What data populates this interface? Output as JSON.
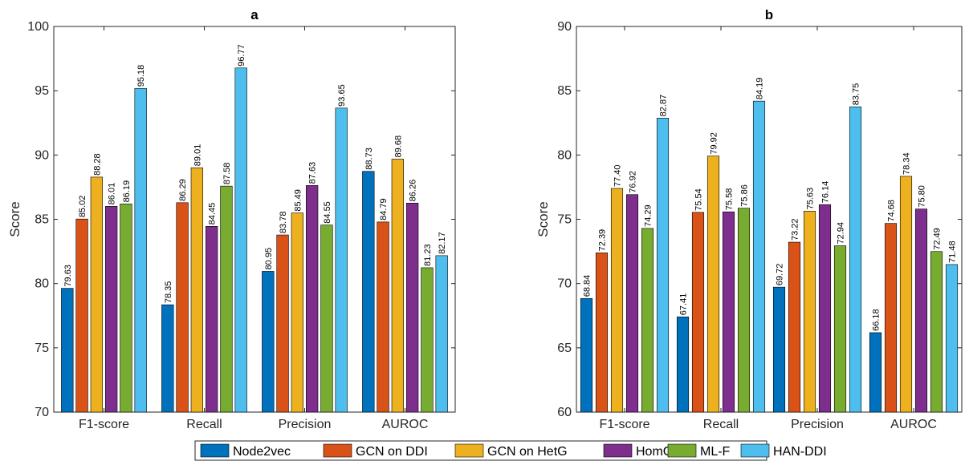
{
  "chart_data": [
    {
      "type": "bar",
      "title": "a",
      "xlabel": "",
      "ylabel": "Score",
      "ylim": [
        70,
        100
      ],
      "yticks": [
        70,
        75,
        80,
        85,
        90,
        95,
        100
      ],
      "categories": [
        "F1-score",
        "Recall",
        "Precision",
        "AUROC"
      ],
      "series": [
        {
          "name": "Node2vec",
          "values": [
            79.63,
            78.35,
            80.95,
            88.73
          ]
        },
        {
          "name": "GCN on DDI",
          "values": [
            85.02,
            86.29,
            83.78,
            84.79
          ]
        },
        {
          "name": "GCN on HetG",
          "values": [
            88.28,
            89.01,
            85.49,
            89.68
          ]
        },
        {
          "name": "HomG",
          "values": [
            86.01,
            84.45,
            87.63,
            86.26
          ]
        },
        {
          "name": "ML-F",
          "values": [
            86.19,
            87.58,
            84.55,
            81.23
          ]
        },
        {
          "name": "HAN-DDI",
          "values": [
            95.18,
            96.77,
            93.65,
            82.17
          ]
        }
      ],
      "labels": [
        [
          "79.63",
          "78.35",
          "80.95",
          "88.73"
        ],
        [
          "85.02",
          "86.29",
          "83.78",
          "84.79"
        ],
        [
          "88.28",
          "89.01",
          "85.49",
          "89.68"
        ],
        [
          "86.01",
          "84.45",
          "87.63",
          "86.26"
        ],
        [
          "86.19",
          "87.58",
          "84.55",
          "81.23"
        ],
        [
          "95.18",
          "96.77",
          "93.65",
          "82.17"
        ]
      ],
      "grid": false
    },
    {
      "type": "bar",
      "title": "b",
      "xlabel": "",
      "ylabel": "Score",
      "ylim": [
        60,
        90
      ],
      "yticks": [
        60,
        65,
        70,
        75,
        80,
        85,
        90
      ],
      "categories": [
        "F1-score",
        "Recall",
        "Precision",
        "AUROC"
      ],
      "series": [
        {
          "name": "Node2vec",
          "values": [
            68.84,
            67.41,
            69.72,
            66.18
          ]
        },
        {
          "name": "GCN on DDI",
          "values": [
            72.39,
            75.54,
            73.22,
            74.68
          ]
        },
        {
          "name": "GCN on HetG",
          "values": [
            77.4,
            79.92,
            75.63,
            78.34
          ]
        },
        {
          "name": "HomG",
          "values": [
            76.92,
            75.58,
            76.14,
            75.8
          ]
        },
        {
          "name": "ML-F",
          "values": [
            74.29,
            75.86,
            72.94,
            72.49
          ]
        },
        {
          "name": "HAN-DDI",
          "values": [
            82.87,
            84.19,
            83.75,
            71.48
          ]
        }
      ],
      "labels": [
        [
          "68.84",
          "67.41",
          "69.72",
          "66.18"
        ],
        [
          "72.39",
          "75.54",
          "73.22",
          "74.68"
        ],
        [
          "77.40",
          "79.92",
          "75.63",
          "78.34"
        ],
        [
          "76.92",
          "75.58",
          "76.14",
          "75.80"
        ],
        [
          "74.29",
          "75.86",
          "72.94",
          "72.49"
        ],
        [
          "82.87",
          "84.19",
          "83.75",
          "71.48"
        ]
      ],
      "grid": false
    }
  ],
  "colors": [
    "#0072BD",
    "#D95319",
    "#EDB120",
    "#7E2F8E",
    "#77AC30",
    "#4DBEEE"
  ],
  "legend": {
    "placement": "bottom-center",
    "entries": [
      "Node2vec",
      "GCN on DDI",
      "GCN on HetG",
      "HomG",
      "ML-F",
      "HAN-DDI"
    ]
  }
}
